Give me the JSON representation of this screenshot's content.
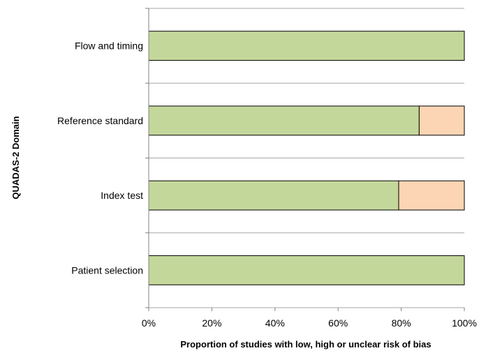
{
  "chart_data": {
    "type": "bar",
    "orientation": "horizontal",
    "stacked": true,
    "categories": [
      "Flow and timing",
      "Reference standard",
      "Index test",
      "Patient selection"
    ],
    "series": [
      {
        "values": [
          100,
          85.7,
          79.2,
          100
        ],
        "color": "#c4d79b"
      },
      {
        "values": [
          0,
          14.3,
          20.8,
          0
        ],
        "color": "#fcd5b4"
      }
    ],
    "x_ticks": [
      "0%",
      "20%",
      "40%",
      "60%",
      "80%",
      "100%"
    ],
    "xlim": [
      0,
      100
    ],
    "xlabel": "Proportion of studies with low, high or unclear risk of bias",
    "ylabel": "QUADAS-2 Domain",
    "grid": "horizontal lines between categories",
    "legend": "none",
    "colors": {
      "gridline": "#a6a6a6",
      "bar_border": "#000000",
      "axis": "#808080"
    }
  }
}
